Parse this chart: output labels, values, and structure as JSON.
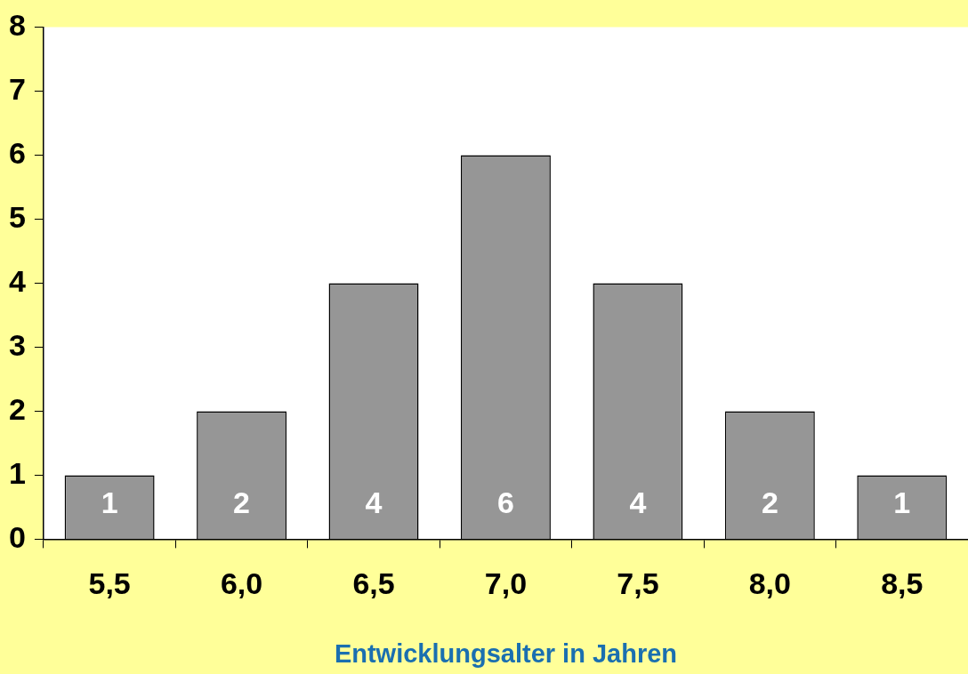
{
  "chart_data": {
    "type": "bar",
    "xlabel": "Entwicklungsalter in Jahren",
    "categories": [
      "5,5",
      "6,0",
      "6,5",
      "7,0",
      "7,5",
      "8,0",
      "8,5"
    ],
    "values": [
      1,
      2,
      4,
      6,
      4,
      2,
      1
    ],
    "color": "#969696",
    "ylim": [
      0,
      8
    ],
    "yticks": [
      0,
      1,
      2,
      3,
      4,
      5,
      6,
      7,
      8
    ],
    "grid": false,
    "legend": false,
    "data_labels": true
  }
}
